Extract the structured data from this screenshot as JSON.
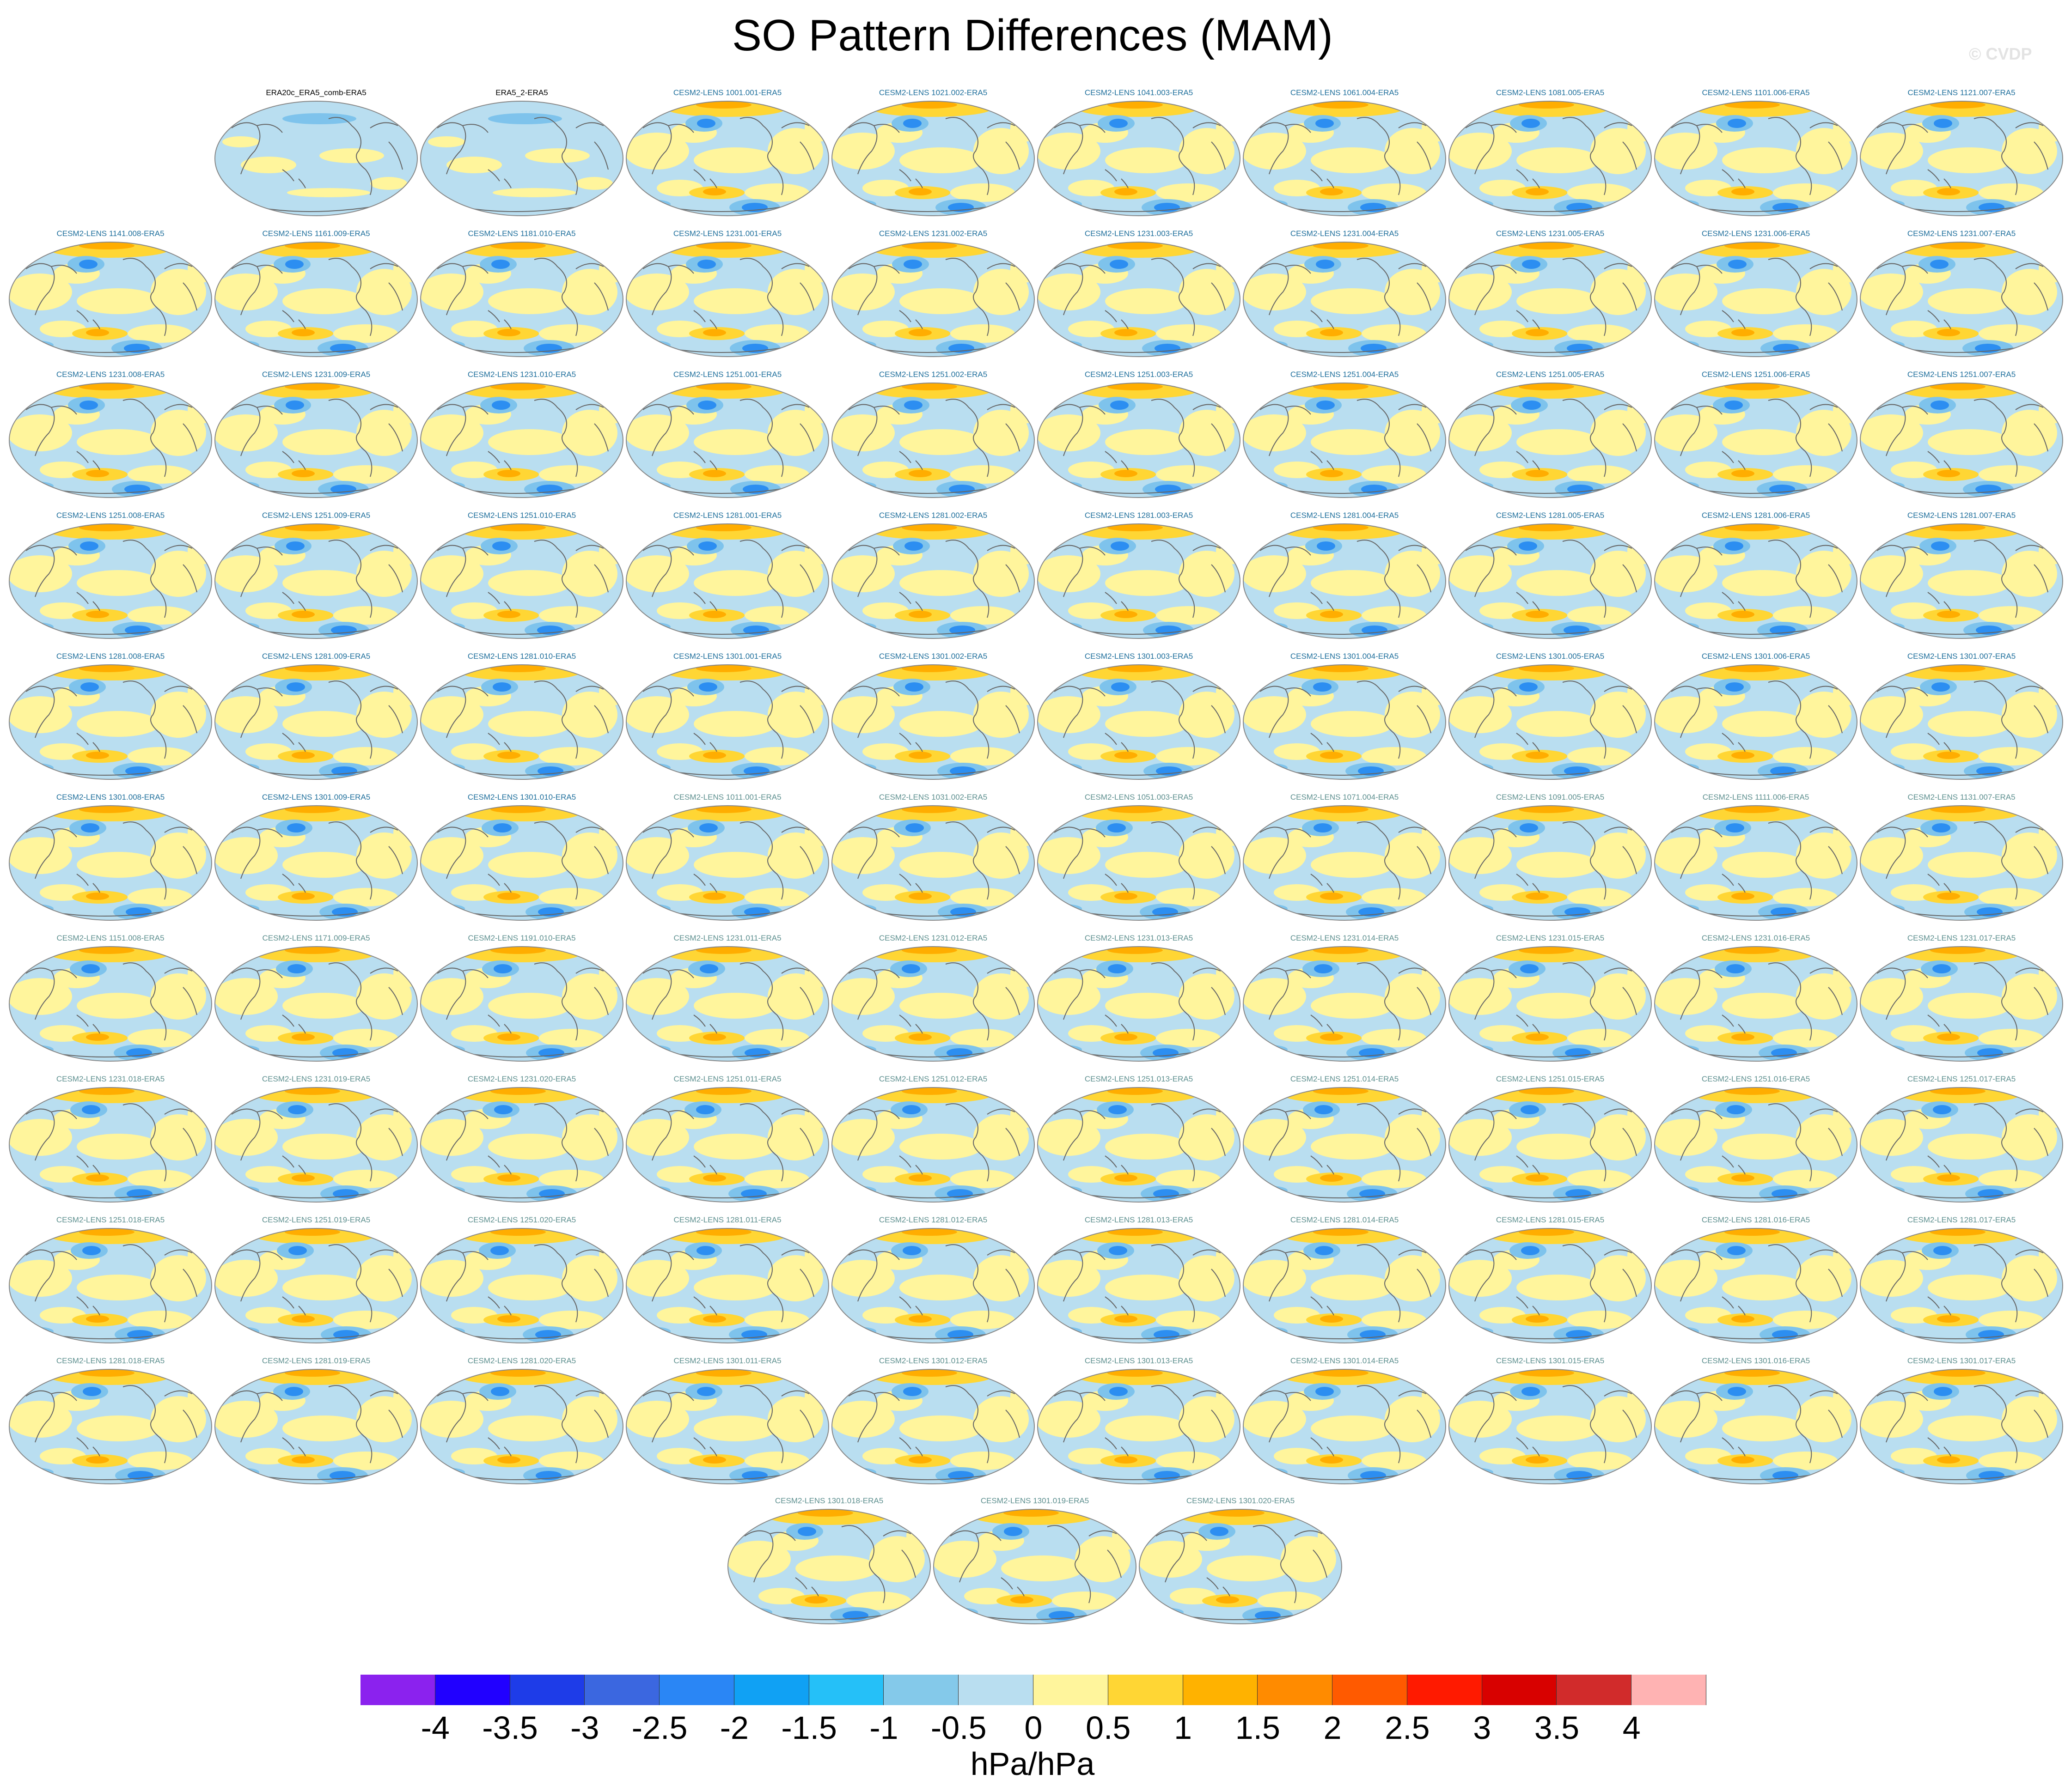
{
  "title": "SO Pattern Differences (MAM)",
  "watermark": "© CVDP",
  "panels": [
    {
      "label": "ERA20c_ERA5_comb-ERA5",
      "group": "obs"
    },
    {
      "label": "ERA5_2-ERA5",
      "group": "obs"
    },
    {
      "label": "CESM2-LENS 1001.001-ERA5",
      "group": "lens"
    },
    {
      "label": "CESM2-LENS 1021.002-ERA5",
      "group": "lens"
    },
    {
      "label": "CESM2-LENS 1041.003-ERA5",
      "group": "lens"
    },
    {
      "label": "CESM2-LENS 1061.004-ERA5",
      "group": "lens"
    },
    {
      "label": "CESM2-LENS 1081.005-ERA5",
      "group": "lens"
    },
    {
      "label": "CESM2-LENS 1101.006-ERA5",
      "group": "lens"
    },
    {
      "label": "CESM2-LENS 1121.007-ERA5",
      "group": "lens"
    },
    {
      "label": "CESM2-LENS 1141.008-ERA5",
      "group": "lens"
    },
    {
      "label": "CESM2-LENS 1161.009-ERA5",
      "group": "lens"
    },
    {
      "label": "CESM2-LENS 1181.010-ERA5",
      "group": "lens"
    },
    {
      "label": "CESM2-LENS 1231.001-ERA5",
      "group": "lens"
    },
    {
      "label": "CESM2-LENS 1231.002-ERA5",
      "group": "lens"
    },
    {
      "label": "CESM2-LENS 1231.003-ERA5",
      "group": "lens"
    },
    {
      "label": "CESM2-LENS 1231.004-ERA5",
      "group": "lens"
    },
    {
      "label": "CESM2-LENS 1231.005-ERA5",
      "group": "lens"
    },
    {
      "label": "CESM2-LENS 1231.006-ERA5",
      "group": "lens"
    },
    {
      "label": "CESM2-LENS 1231.007-ERA5",
      "group": "lens"
    },
    {
      "label": "CESM2-LENS 1231.008-ERA5",
      "group": "lens"
    },
    {
      "label": "CESM2-LENS 1231.009-ERA5",
      "group": "lens"
    },
    {
      "label": "CESM2-LENS 1231.010-ERA5",
      "group": "lens"
    },
    {
      "label": "CESM2-LENS 1251.001-ERA5",
      "group": "lens"
    },
    {
      "label": "CESM2-LENS 1251.002-ERA5",
      "group": "lens"
    },
    {
      "label": "CESM2-LENS 1251.003-ERA5",
      "group": "lens"
    },
    {
      "label": "CESM2-LENS 1251.004-ERA5",
      "group": "lens"
    },
    {
      "label": "CESM2-LENS 1251.005-ERA5",
      "group": "lens"
    },
    {
      "label": "CESM2-LENS 1251.006-ERA5",
      "group": "lens"
    },
    {
      "label": "CESM2-LENS 1251.007-ERA5",
      "group": "lens"
    },
    {
      "label": "CESM2-LENS 1251.008-ERA5",
      "group": "lens"
    },
    {
      "label": "CESM2-LENS 1251.009-ERA5",
      "group": "lens"
    },
    {
      "label": "CESM2-LENS 1251.010-ERA5",
      "group": "lens"
    },
    {
      "label": "CESM2-LENS 1281.001-ERA5",
      "group": "lens"
    },
    {
      "label": "CESM2-LENS 1281.002-ERA5",
      "group": "lens"
    },
    {
      "label": "CESM2-LENS 1281.003-ERA5",
      "group": "lens"
    },
    {
      "label": "CESM2-LENS 1281.004-ERA5",
      "group": "lens"
    },
    {
      "label": "CESM2-LENS 1281.005-ERA5",
      "group": "lens"
    },
    {
      "label": "CESM2-LENS 1281.006-ERA5",
      "group": "lens"
    },
    {
      "label": "CESM2-LENS 1281.007-ERA5",
      "group": "lens"
    },
    {
      "label": "CESM2-LENS 1281.008-ERA5",
      "group": "lens"
    },
    {
      "label": "CESM2-LENS 1281.009-ERA5",
      "group": "lens"
    },
    {
      "label": "CESM2-LENS 1281.010-ERA5",
      "group": "lens"
    },
    {
      "label": "CESM2-LENS 1301.001-ERA5",
      "group": "lens"
    },
    {
      "label": "CESM2-LENS 1301.002-ERA5",
      "group": "lens"
    },
    {
      "label": "CESM2-LENS 1301.003-ERA5",
      "group": "lens"
    },
    {
      "label": "CESM2-LENS 1301.004-ERA5",
      "group": "lens"
    },
    {
      "label": "CESM2-LENS 1301.005-ERA5",
      "group": "lens"
    },
    {
      "label": "CESM2-LENS 1301.006-ERA5",
      "group": "lens"
    },
    {
      "label": "CESM2-LENS 1301.007-ERA5",
      "group": "lens"
    },
    {
      "label": "CESM2-LENS 1301.008-ERA5",
      "group": "lens"
    },
    {
      "label": "CESM2-LENS 1301.009-ERA5",
      "group": "lens"
    },
    {
      "label": "CESM2-LENS 1301.010-ERA5",
      "group": "lens"
    },
    {
      "label": "CESM2-LENS 1011.001-ERA5",
      "group": "smbb"
    },
    {
      "label": "CESM2-LENS 1031.002-ERA5",
      "group": "smbb"
    },
    {
      "label": "CESM2-LENS 1051.003-ERA5",
      "group": "smbb"
    },
    {
      "label": "CESM2-LENS 1071.004-ERA5",
      "group": "smbb"
    },
    {
      "label": "CESM2-LENS 1091.005-ERA5",
      "group": "smbb"
    },
    {
      "label": "CESM2-LENS 1111.006-ERA5",
      "group": "smbb"
    },
    {
      "label": "CESM2-LENS 1131.007-ERA5",
      "group": "smbb"
    },
    {
      "label": "CESM2-LENS 1151.008-ERA5",
      "group": "smbb"
    },
    {
      "label": "CESM2-LENS 1171.009-ERA5",
      "group": "smbb"
    },
    {
      "label": "CESM2-LENS 1191.010-ERA5",
      "group": "smbb"
    },
    {
      "label": "CESM2-LENS 1231.011-ERA5",
      "group": "smbb"
    },
    {
      "label": "CESM2-LENS 1231.012-ERA5",
      "group": "smbb"
    },
    {
      "label": "CESM2-LENS 1231.013-ERA5",
      "group": "smbb"
    },
    {
      "label": "CESM2-LENS 1231.014-ERA5",
      "group": "smbb"
    },
    {
      "label": "CESM2-LENS 1231.015-ERA5",
      "group": "smbb"
    },
    {
      "label": "CESM2-LENS 1231.016-ERA5",
      "group": "smbb"
    },
    {
      "label": "CESM2-LENS 1231.017-ERA5",
      "group": "smbb"
    },
    {
      "label": "CESM2-LENS 1231.018-ERA5",
      "group": "smbb"
    },
    {
      "label": "CESM2-LENS 1231.019-ERA5",
      "group": "smbb"
    },
    {
      "label": "CESM2-LENS 1231.020-ERA5",
      "group": "smbb"
    },
    {
      "label": "CESM2-LENS 1251.011-ERA5",
      "group": "smbb"
    },
    {
      "label": "CESM2-LENS 1251.012-ERA5",
      "group": "smbb"
    },
    {
      "label": "CESM2-LENS 1251.013-ERA5",
      "group": "smbb"
    },
    {
      "label": "CESM2-LENS 1251.014-ERA5",
      "group": "smbb"
    },
    {
      "label": "CESM2-LENS 1251.015-ERA5",
      "group": "smbb"
    },
    {
      "label": "CESM2-LENS 1251.016-ERA5",
      "group": "smbb"
    },
    {
      "label": "CESM2-LENS 1251.017-ERA5",
      "group": "smbb"
    },
    {
      "label": "CESM2-LENS 1251.018-ERA5",
      "group": "smbb"
    },
    {
      "label": "CESM2-LENS 1251.019-ERA5",
      "group": "smbb"
    },
    {
      "label": "CESM2-LENS 1251.020-ERA5",
      "group": "smbb"
    },
    {
      "label": "CESM2-LENS 1281.011-ERA5",
      "group": "smbb"
    },
    {
      "label": "CESM2-LENS 1281.012-ERA5",
      "group": "smbb"
    },
    {
      "label": "CESM2-LENS 1281.013-ERA5",
      "group": "smbb"
    },
    {
      "label": "CESM2-LENS 1281.014-ERA5",
      "group": "smbb"
    },
    {
      "label": "CESM2-LENS 1281.015-ERA5",
      "group": "smbb"
    },
    {
      "label": "CESM2-LENS 1281.016-ERA5",
      "group": "smbb"
    },
    {
      "label": "CESM2-LENS 1281.017-ERA5",
      "group": "smbb"
    },
    {
      "label": "CESM2-LENS 1281.018-ERA5",
      "group": "smbb"
    },
    {
      "label": "CESM2-LENS 1281.019-ERA5",
      "group": "smbb"
    },
    {
      "label": "CESM2-LENS 1281.020-ERA5",
      "group": "smbb"
    },
    {
      "label": "CESM2-LENS 1301.011-ERA5",
      "group": "smbb"
    },
    {
      "label": "CESM2-LENS 1301.012-ERA5",
      "group": "smbb"
    },
    {
      "label": "CESM2-LENS 1301.013-ERA5",
      "group": "smbb"
    },
    {
      "label": "CESM2-LENS 1301.014-ERA5",
      "group": "smbb"
    },
    {
      "label": "CESM2-LENS 1301.015-ERA5",
      "group": "smbb"
    },
    {
      "label": "CESM2-LENS 1301.016-ERA5",
      "group": "smbb"
    },
    {
      "label": "CESM2-LENS 1301.017-ERA5",
      "group": "smbb"
    },
    {
      "label": "CESM2-LENS 1301.018-ERA5",
      "group": "smbb"
    },
    {
      "label": "CESM2-LENS 1301.019-ERA5",
      "group": "smbb"
    },
    {
      "label": "CESM2-LENS 1301.020-ERA5",
      "group": "smbb"
    }
  ],
  "title_colors": {
    "obs": "#000000",
    "lens": "#1f6f9c",
    "smbb": "#5e8f8f"
  },
  "map_colors": {
    "background": "#b8def0",
    "positive": "#fff59d",
    "strong_positive": "#ffd633",
    "peak_positive": "#ffae00",
    "negative": "#7ec3eb",
    "strong_negative": "#2b8ef0",
    "coast": "#666666",
    "frame": "#888888"
  },
  "colorbar": {
    "colors": [
      "#8b22ee",
      "#2200ff",
      "#1e3de8",
      "#3b68e0",
      "#2b86f5",
      "#10a1f5",
      "#26c0f8",
      "#84c8ea",
      "#b8def0",
      "#fff59d",
      "#ffd633",
      "#ffb300",
      "#ff8c00",
      "#ff5a00",
      "#ff1a00",
      "#d90000",
      "#d12b2b",
      "#ffb3b3"
    ],
    "ticks": [
      "-4",
      "-3.5",
      "-3",
      "-2.5",
      "-2",
      "-1.5",
      "-1",
      "-0.5",
      "0",
      "0.5",
      "1",
      "1.5",
      "2",
      "2.5",
      "3",
      "3.5",
      "4"
    ],
    "unit": "hPa/hPa"
  }
}
